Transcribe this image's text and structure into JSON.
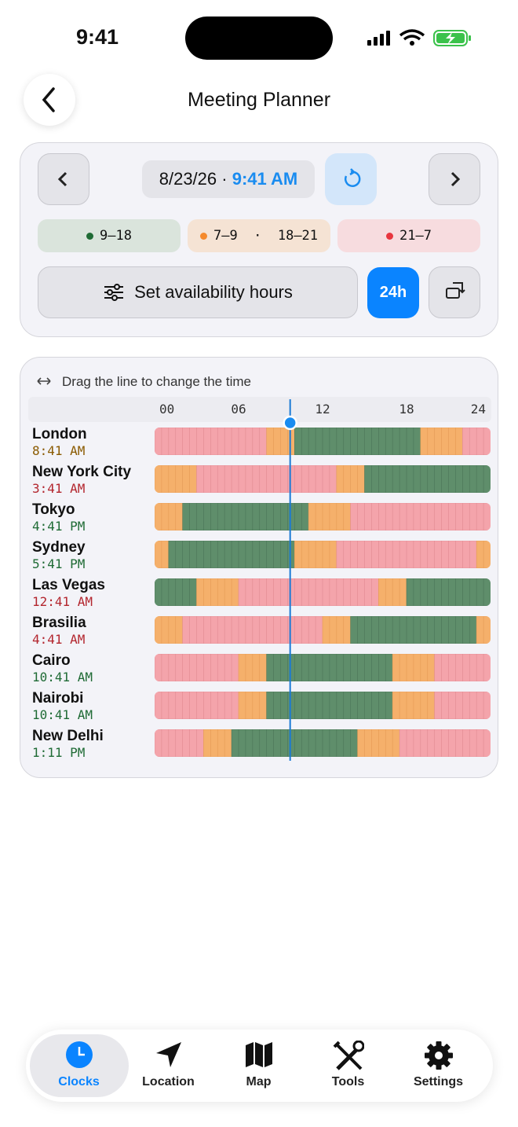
{
  "status_bar": {
    "time": "9:41"
  },
  "header": {
    "title": "Meeting Planner"
  },
  "controls": {
    "date": "8/23/26 ·",
    "time": "9:41 AM",
    "legend": [
      "9–18",
      "7–9  ·  18–21",
      "21–7"
    ],
    "availability_button": "Set availability hours",
    "format_button": "24h"
  },
  "timeline": {
    "hint": "Drag the line to change the time",
    "axis": [
      "00",
      "06",
      "12",
      "18",
      "24"
    ],
    "rows": [
      {
        "city": "London",
        "time": "8:41 AM"
      },
      {
        "city": "New York City",
        "time": "3:41 AM"
      },
      {
        "city": "Tokyo",
        "time": "4:41 PM"
      },
      {
        "city": "Sydney",
        "time": "5:41 PM"
      },
      {
        "city": "Las Vegas",
        "time": "12:41 AM"
      },
      {
        "city": "Brasilia",
        "time": "4:41 AM"
      },
      {
        "city": "Cairo",
        "time": "10:41 AM"
      },
      {
        "city": "Nairobi",
        "time": "10:41 AM"
      },
      {
        "city": "New Delhi",
        "time": "1:11 PM"
      }
    ]
  },
  "tab_bar": {
    "tabs": [
      "Clocks",
      "Location",
      "Map",
      "Tools",
      "Settings"
    ]
  }
}
